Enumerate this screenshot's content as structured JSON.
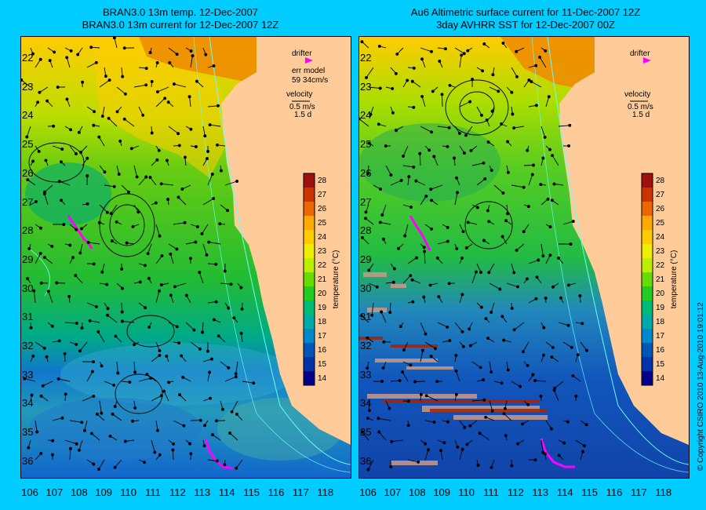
{
  "left_panel": {
    "title_line1": "BRAN3.0 13m temp. 12-Dec-2007",
    "title_line2": "BRAN3.0 13m current for 12-Dec-2007 12Z",
    "legend": {
      "drifter_label": "drifter",
      "err_model_label": "err model",
      "err_model_value": "59 34cm/s",
      "velocity_label": "velocity",
      "velocity_scale": "0.5 m/s",
      "velocity_days": "1.5 d"
    }
  },
  "right_panel": {
    "title_line1": "Au6 Altimetric surface current for 11-Dec-2007 12Z",
    "title_line2": "3day AVHRR SST for 12-Dec-2007 00Z",
    "legend": {
      "drifter_label": "drifter",
      "velocity_label": "velocity",
      "velocity_scale": "0.5 m/s",
      "velocity_days": "1.5 d"
    }
  },
  "colorbar": {
    "label": "temperature (°C)",
    "ticks": [
      "28",
      "27",
      "26",
      "25",
      "24",
      "23",
      "22",
      "21",
      "20",
      "19",
      "18",
      "17",
      "16",
      "15",
      "14"
    ],
    "colors": [
      "#a01010",
      "#cc3300",
      "#ee6600",
      "#ffaa00",
      "#ffcc00",
      "#eeee00",
      "#bbee00",
      "#66dd00",
      "#22cc22",
      "#00bb77",
      "#00aaaa",
      "#0088cc",
      "#0055bb",
      "#0033aa",
      "#000088"
    ]
  },
  "axes": {
    "lat_ticks": [
      "22",
      "23",
      "24",
      "25",
      "26",
      "27",
      "28",
      "29",
      "30",
      "31",
      "32",
      "33",
      "34",
      "35",
      "36"
    ],
    "lon_ticks": [
      "106",
      "107",
      "108",
      "109",
      "110",
      "111",
      "112",
      "113",
      "114",
      "115",
      "116",
      "117",
      "118"
    ]
  },
  "colors": {
    "background": "#00ccff",
    "land": "#ffcc99",
    "drifter": "#ff00ff",
    "contour": "#66ffff"
  },
  "copyright": "© Copyright CSIRO 2010   13-Aug-2010 19:01:12"
}
